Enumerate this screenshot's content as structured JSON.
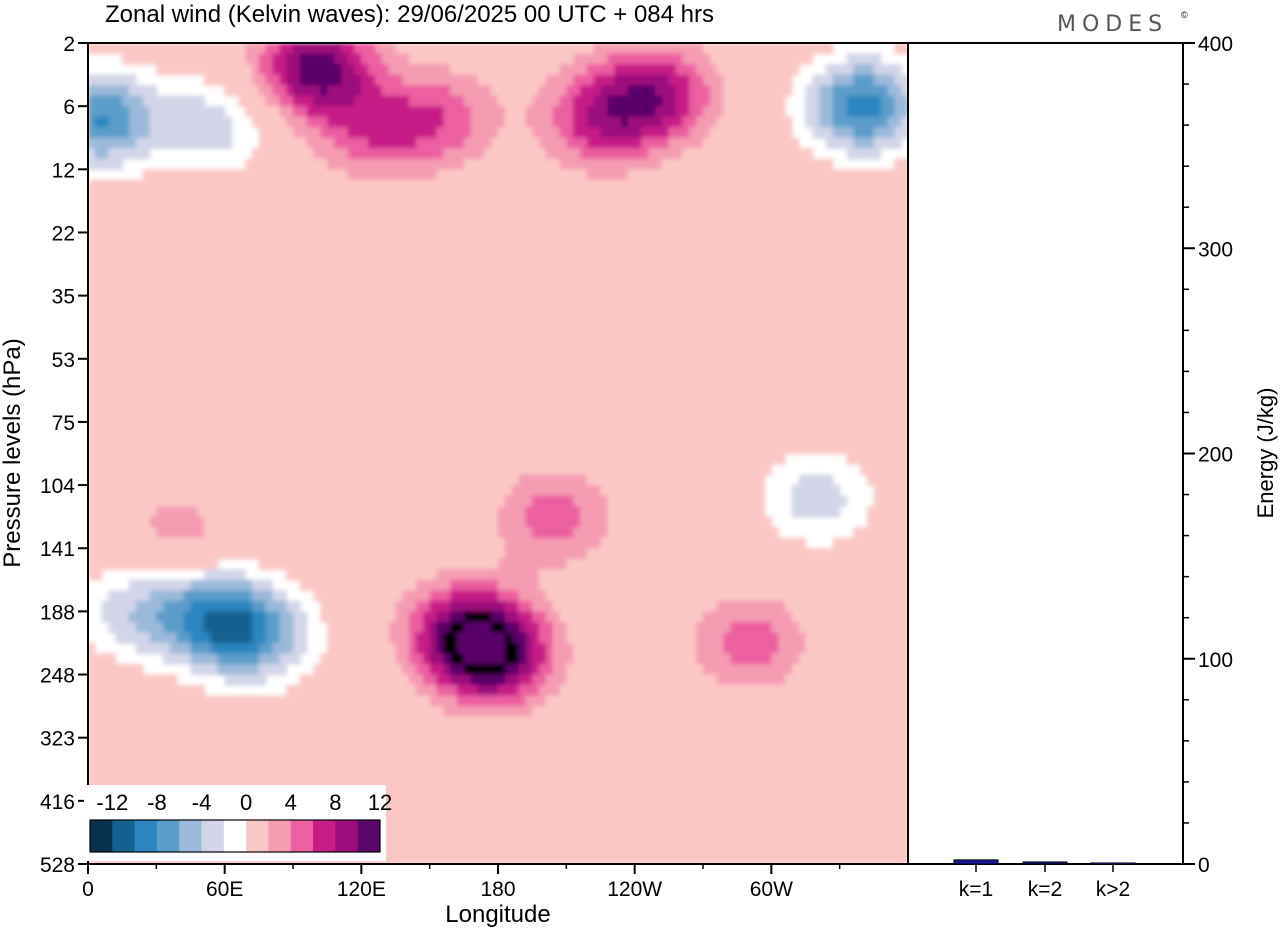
{
  "brand": {
    "logo": "MODES",
    "mark": "©"
  },
  "chart_data": [
    {
      "type": "heatmap",
      "title": "Zonal wind (Kelvin waves):  29/06/2025  00 UTC  + 084 hrs",
      "xlabel": "Longitude",
      "ylabel": "Pressure levels (hPa)",
      "x_ticks": [
        "0",
        "60E",
        "120E",
        "180",
        "120W",
        "60W"
      ],
      "x_tick_values": [
        0,
        60,
        120,
        180,
        240,
        300
      ],
      "xlim": [
        0,
        360
      ],
      "y_ticks": [
        "2",
        "6",
        "12",
        "22",
        "35",
        "53",
        "75",
        "104",
        "141",
        "188",
        "248",
        "323",
        "416",
        "528"
      ],
      "y_axis": "pressure levels, top to bottom",
      "colorbar": {
        "labels": [
          "-12",
          "-8",
          "-4",
          "0",
          "4",
          "8",
          "12"
        ],
        "levels": [
          -14,
          -12,
          -10,
          -8,
          -6,
          -4,
          -2,
          2,
          4,
          6,
          8,
          10,
          12,
          14
        ],
        "colors": [
          "#08304f",
          "#12618f",
          "#2b85c0",
          "#5b9dcb",
          "#9bb9da",
          "#d2d5e8",
          "#ffffff",
          "#fbc7c5",
          "#f59cb2",
          "#ec5fa0",
          "#c71d87",
          "#9c0b7c",
          "#5a0569"
        ]
      },
      "features": [
        {
          "lon": 5,
          "level": 1.2,
          "value": -10,
          "label": "blue patch near top-left"
        },
        {
          "lon": 55,
          "level": 1.3,
          "value": -5
        },
        {
          "lon": 100,
          "level": 0.4,
          "value": 11
        },
        {
          "lon": 125,
          "level": 1.4,
          "value": 5
        },
        {
          "lon": 155,
          "level": 1.2,
          "value": 5
        },
        {
          "lon": 225,
          "level": 1.2,
          "value": 7
        },
        {
          "lon": 250,
          "level": 0.8,
          "value": 8
        },
        {
          "lon": 340,
          "level": 1.0,
          "value": -11
        },
        {
          "lon": 20,
          "level": 9.0,
          "value": -5
        },
        {
          "lon": 55,
          "level": 9.1,
          "value": -9
        },
        {
          "lon": 75,
          "level": 9.4,
          "value": -7
        },
        {
          "lon": 165,
          "level": 9.3,
          "value": 8
        },
        {
          "lon": 178,
          "level": 9.7,
          "value": 11
        },
        {
          "lon": 205,
          "level": 7.5,
          "value": 5
        },
        {
          "lon": 290,
          "level": 9.5,
          "value": 5
        },
        {
          "lon": 320,
          "level": 7.2,
          "value": -5
        },
        {
          "lon": 20,
          "level": 12.4,
          "value": 3
        },
        {
          "lon": 40,
          "level": 7.8,
          "value": 3
        }
      ]
    },
    {
      "type": "bar",
      "categories": [
        "k=1",
        "k=2",
        "k>2"
      ],
      "values": [
        2,
        1,
        0.5
      ],
      "ylabel": "Energy (J/kg)",
      "ylim": [
        0,
        400
      ],
      "y_ticks": [
        0,
        100,
        200,
        300,
        400
      ],
      "bar_color": "#1a1a9c"
    }
  ]
}
